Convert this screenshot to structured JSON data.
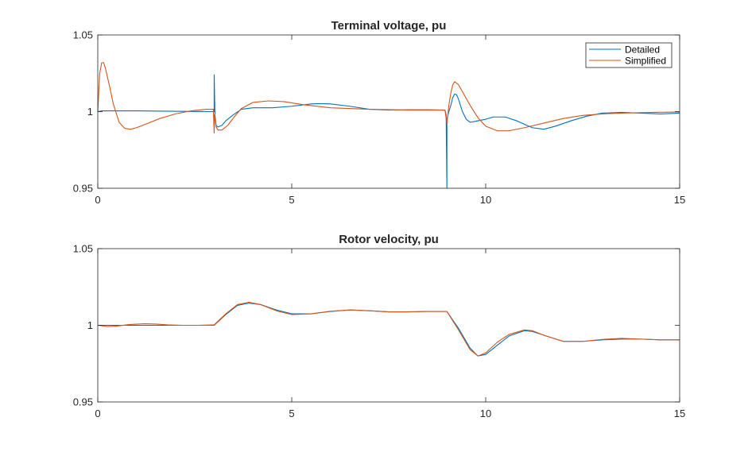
{
  "chart_data": [
    {
      "type": "line",
      "title": "Terminal voltage, pu",
      "xlabel": "",
      "ylabel": "",
      "xlim": [
        0,
        15
      ],
      "ylim": [
        0.95,
        1.05
      ],
      "xticks": [
        "0",
        "5",
        "10",
        "15"
      ],
      "yticks": [
        "0.95",
        "1",
        "1.05"
      ],
      "grid": false,
      "legend": {
        "position": "top-right",
        "entries": [
          "Detailed",
          "Simplified"
        ]
      },
      "series": [
        {
          "name": "Detailed",
          "color": "#0072BD",
          "x": [
            0,
            0.1,
            0.5,
            1.0,
            2.0,
            2.98,
            3.0,
            3.001,
            3.02,
            3.05,
            3.1,
            3.2,
            3.3,
            3.5,
            3.7,
            4.0,
            4.5,
            5.0,
            5.5,
            5.7,
            6.0,
            6.5,
            7.0,
            7.5,
            8.0,
            8.5,
            8.95,
            8.98,
            9.0,
            9.001,
            9.02,
            9.05,
            9.1,
            9.15,
            9.2,
            9.25,
            9.3,
            9.4,
            9.5,
            9.6,
            9.8,
            10.0,
            10.2,
            10.5,
            10.8,
            11.2,
            11.5,
            11.8,
            12.2,
            12.6,
            13.0,
            13.5,
            14.0,
            14.5,
            15.0
          ],
          "y": [
            1.0,
            1.0005,
            1.0005,
            1.0005,
            1.0002,
            1.0,
            1.0,
            1.024,
            0.998,
            0.991,
            0.99,
            0.991,
            0.994,
            0.998,
            1.0015,
            1.0025,
            1.0025,
            1.0035,
            1.005,
            1.0052,
            1.005,
            1.0035,
            1.0015,
            1.001,
            1.0012,
            1.0012,
            1.001,
            0.998,
            0.95,
            0.995,
            0.997,
            1.0,
            1.004,
            1.009,
            1.0115,
            1.011,
            1.008,
            1.0,
            0.995,
            0.993,
            0.994,
            0.995,
            0.9965,
            0.9965,
            0.994,
            0.9895,
            0.9885,
            0.9905,
            0.994,
            0.997,
            0.999,
            0.9995,
            0.999,
            0.9985,
            0.999
          ]
        },
        {
          "name": "Simplified",
          "color": "#D95319",
          "x": [
            0,
            0.05,
            0.1,
            0.15,
            0.2,
            0.3,
            0.4,
            0.55,
            0.7,
            0.85,
            1.0,
            1.3,
            1.6,
            2.0,
            2.4,
            2.8,
            2.98,
            3.0,
            3.01,
            3.05,
            3.1,
            3.2,
            3.35,
            3.5,
            3.7,
            4.0,
            4.4,
            4.8,
            5.3,
            6.0,
            7.0,
            8.0,
            8.95,
            9.0,
            9.05,
            9.1,
            9.15,
            9.2,
            9.3,
            9.4,
            9.6,
            9.8,
            10.0,
            10.3,
            10.6,
            11.0,
            11.5,
            12.0,
            12.5,
            13.0,
            13.5,
            14.0,
            14.5,
            15.0
          ],
          "y": [
            1.0,
            1.025,
            1.0318,
            1.032,
            1.028,
            1.017,
            1.005,
            0.993,
            0.989,
            0.9885,
            0.9895,
            0.9925,
            0.9955,
            0.9985,
            1.0005,
            1.0015,
            1.0015,
            0.986,
            0.998,
            0.99,
            0.988,
            0.988,
            0.991,
            0.996,
            1.002,
            1.006,
            1.007,
            1.0065,
            1.0045,
            1.0025,
            1.0015,
            1.001,
            1.001,
            0.992,
            1.004,
            1.012,
            1.0175,
            1.0195,
            1.0175,
            1.013,
            1.004,
            0.996,
            0.9905,
            0.9875,
            0.9875,
            0.9895,
            0.9925,
            0.9955,
            0.9975,
            0.9985,
            0.999,
            0.9993,
            0.9996,
            0.9998
          ]
        }
      ]
    },
    {
      "type": "line",
      "title": "Rotor velocity, pu",
      "xlabel": "",
      "ylabel": "",
      "xlim": [
        0,
        15
      ],
      "ylim": [
        0.95,
        1.05
      ],
      "xticks": [
        "0",
        "5",
        "10",
        "15"
      ],
      "yticks": [
        "0.95",
        "1",
        "1.05"
      ],
      "grid": false,
      "series": [
        {
          "name": "Detailed",
          "color": "#0072BD",
          "x": [
            0,
            0.5,
            1.0,
            1.5,
            2.0,
            2.5,
            3.0,
            3.3,
            3.6,
            3.9,
            4.2,
            4.6,
            5.0,
            5.5,
            6.0,
            6.5,
            7.0,
            7.5,
            8.0,
            8.5,
            9.0,
            9.3,
            9.6,
            9.8,
            10.0,
            10.3,
            10.6,
            11.0,
            11.2,
            11.5,
            12.0,
            12.5,
            13.0,
            13.5,
            14.0,
            14.5,
            15.0
          ],
          "y": [
            1.0,
            1.0,
            1.0,
            1.0,
            1.0,
            1.0,
            1.0,
            1.007,
            1.013,
            1.0145,
            1.0135,
            1.01,
            1.0075,
            1.0075,
            1.009,
            1.01,
            1.0095,
            1.0088,
            1.0088,
            1.009,
            1.009,
            0.998,
            0.985,
            0.98,
            0.981,
            0.987,
            0.993,
            0.9965,
            0.996,
            0.9935,
            0.9895,
            0.9895,
            0.9905,
            0.991,
            0.991,
            0.9905,
            0.9905
          ]
        },
        {
          "name": "Simplified",
          "color": "#D95319",
          "x": [
            0,
            0.25,
            0.5,
            0.8,
            1.2,
            1.5,
            1.8,
            2.2,
            2.6,
            3.0,
            3.3,
            3.6,
            3.9,
            4.2,
            4.6,
            5.0,
            5.5,
            6.0,
            6.5,
            7.0,
            7.5,
            8.0,
            8.5,
            9.0,
            9.3,
            9.6,
            9.8,
            10.0,
            10.3,
            10.6,
            11.0,
            11.2,
            11.5,
            12.0,
            12.5,
            13.0,
            13.5,
            14.0,
            14.5,
            15.0
          ],
          "y": [
            1.0,
            0.9992,
            0.9995,
            1.0005,
            1.001,
            1.0008,
            1.0003,
            1.0,
            1.0,
            1.0003,
            1.0075,
            1.0135,
            1.015,
            1.0135,
            1.0095,
            1.007,
            1.0075,
            1.0092,
            1.01,
            1.0095,
            1.0088,
            1.0088,
            1.009,
            1.009,
            0.997,
            0.984,
            0.98,
            0.982,
            0.989,
            0.994,
            0.997,
            0.9965,
            0.9935,
            0.9895,
            0.9895,
            0.9908,
            0.9915,
            0.991,
            0.9905,
            0.9905
          ]
        }
      ]
    }
  ]
}
